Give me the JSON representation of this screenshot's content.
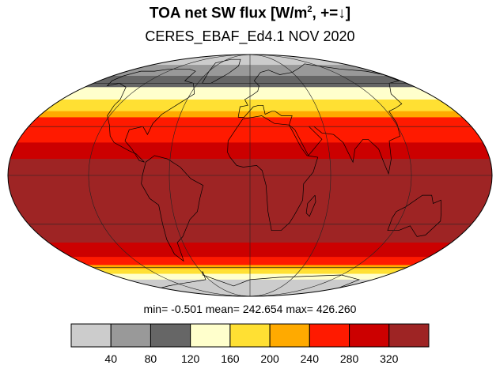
{
  "title": {
    "main_prefix": "TOA net SW flux [W/m",
    "main_sup": "2",
    "main_suffix": ", +=↓]",
    "subtitle": "CERES_EBAF_Ed4.1 NOV 2020"
  },
  "stats": {
    "min_label": "min=",
    "min_value": "-0.501",
    "mean_label": "mean=",
    "mean_value": "242.654",
    "max_label": "max=",
    "max_value": "426.260"
  },
  "colorbar": {
    "colors": [
      "#cccccc",
      "#999999",
      "#666666",
      "#ffffcc",
      "#ffe033",
      "#ffaa00",
      "#ff1a00",
      "#cc0000",
      "#9e2424"
    ],
    "tick_labels": [
      "40",
      "80",
      "120",
      "160",
      "200",
      "240",
      "280",
      "320"
    ]
  },
  "map": {
    "projection": "Mollweide",
    "bands_north_to_south": [
      {
        "color": "#cccccc",
        "lat_from": 90,
        "lat_to": 76
      },
      {
        "color": "#999999",
        "lat_from": 76,
        "lat_to": 66
      },
      {
        "color": "#666666",
        "lat_from": 66,
        "lat_to": 57
      },
      {
        "color": "#ffffcc",
        "lat_from": 57,
        "lat_to": 48
      },
      {
        "color": "#ffe033",
        "lat_from": 48,
        "lat_to": 40
      },
      {
        "color": "#ffaa00",
        "lat_from": 40,
        "lat_to": 36
      },
      {
        "color": "#ff1a00",
        "lat_from": 36,
        "lat_to": 20
      },
      {
        "color": "#cc0000",
        "lat_from": 20,
        "lat_to": 10
      },
      {
        "color": "#9e2424",
        "lat_from": 10,
        "lat_to": -42
      },
      {
        "color": "#cc0000",
        "lat_from": -42,
        "lat_to": -52
      },
      {
        "color": "#ff1a00",
        "lat_from": -52,
        "lat_to": -58
      },
      {
        "color": "#ffaa00",
        "lat_from": -58,
        "lat_to": -61
      },
      {
        "color": "#ffe033",
        "lat_from": -61,
        "lat_to": -65
      },
      {
        "color": "#ffffcc",
        "lat_from": -65,
        "lat_to": -70
      },
      {
        "color": "#cccccc",
        "lat_from": -70,
        "lat_to": -90
      }
    ],
    "grid_meridians": [
      -120,
      -60,
      0,
      60,
      120
    ],
    "grid_parallels": [
      -60,
      -30,
      0,
      30,
      60
    ]
  }
}
